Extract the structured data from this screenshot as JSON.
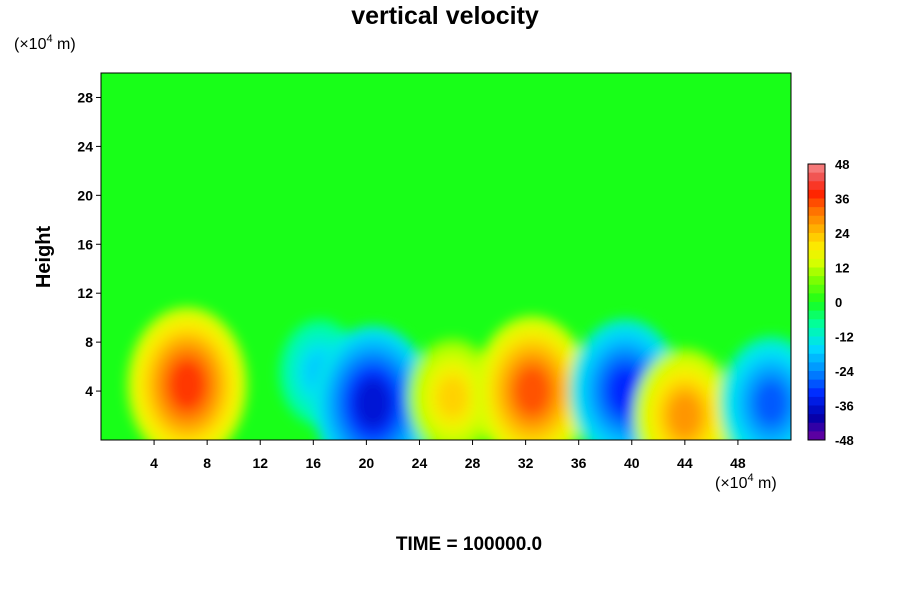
{
  "chart_data": {
    "type": "heatmap",
    "title": "vertical velocity",
    "ylabel": "Height",
    "xunit_prefix": "(×10",
    "xunit_exp": "4",
    "xunit_suffix": " m)",
    "yunit_prefix": "(×10",
    "yunit_exp": "4",
    "yunit_suffix": " m)",
    "xlim": [
      0,
      52
    ],
    "ylim": [
      0,
      30
    ],
    "xticks": [
      "4",
      "8",
      "12",
      "16",
      "20",
      "24",
      "28",
      "32",
      "36",
      "40",
      "44",
      "48"
    ],
    "yticks": [
      "4",
      "8",
      "12",
      "16",
      "20",
      "24",
      "28"
    ],
    "colorbar": {
      "range": [
        -48,
        48
      ],
      "ticks": [
        "48",
        "36",
        "24",
        "12",
        "0",
        "-12",
        "-24",
        "-36",
        "-48"
      ]
    },
    "features": [
      {
        "x": 6.5,
        "y": 4.5,
        "value": 36
      },
      {
        "x": 16.5,
        "y": 5.5,
        "value": -18
      },
      {
        "x": 20.5,
        "y": 3.0,
        "value": -36
      },
      {
        "x": 26.5,
        "y": 3.5,
        "value": 22
      },
      {
        "x": 32.5,
        "y": 4.0,
        "value": 34
      },
      {
        "x": 39.5,
        "y": 4.0,
        "value": -32
      },
      {
        "x": 44.0,
        "y": 2.0,
        "value": 28
      },
      {
        "x": 50.5,
        "y": 3.0,
        "value": -28
      }
    ]
  },
  "footer": {
    "time_label": "TIME = 100000.0"
  }
}
